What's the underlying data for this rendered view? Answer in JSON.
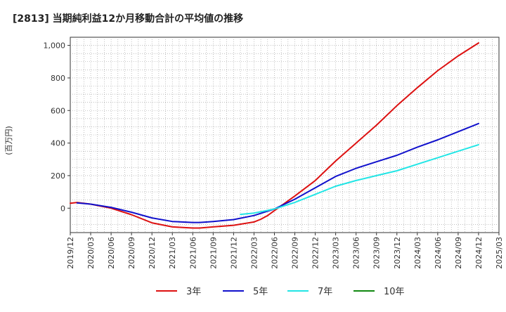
{
  "chart_data": {
    "type": "line",
    "title": "[2813]  当期純利益12か月移動合計の平均値の推移",
    "xlabel": "",
    "ylabel": "(百万円)",
    "ylim": [
      -150,
      1050
    ],
    "yticks": [
      0,
      200,
      400,
      600,
      800,
      1000
    ],
    "ytick_labels": [
      "0",
      "200",
      "400",
      "600",
      "800",
      "1,000"
    ],
    "x_ticks": [
      "2019/12",
      "2020/03",
      "2020/06",
      "2020/09",
      "2020/12",
      "2021/03",
      "2021/06",
      "2021/09",
      "2021/12",
      "2022/03",
      "2022/06",
      "2022/09",
      "2022/12",
      "2023/03",
      "2023/06",
      "2023/09",
      "2023/12",
      "2024/03",
      "2024/06",
      "2024/09",
      "2024/12",
      "2025/03"
    ],
    "grid": true,
    "legend_position": "bottom",
    "series": [
      {
        "name": "3年",
        "color": "#dd1111",
        "x": [
          "2019/12",
          "2020/01",
          "2020/03",
          "2020/06",
          "2020/09",
          "2020/12",
          "2021/03",
          "2021/06",
          "2021/07",
          "2021/09",
          "2021/12",
          "2022/03",
          "2022/04",
          "2022/05",
          "2022/06",
          "2022/09",
          "2022/12",
          "2023/03",
          "2023/06",
          "2023/09",
          "2023/12",
          "2024/03",
          "2024/06",
          "2024/09",
          "2024/12"
        ],
        "values": [
          30,
          35,
          25,
          0,
          -40,
          -90,
          -115,
          -122,
          -122,
          -115,
          -105,
          -85,
          -68,
          -45,
          -15,
          75,
          170,
          290,
          400,
          510,
          630,
          740,
          845,
          935,
          1015
        ]
      },
      {
        "name": "5年",
        "color": "#1111cc",
        "x": [
          "2020/01",
          "2020/03",
          "2020/06",
          "2020/09",
          "2020/12",
          "2021/03",
          "2021/06",
          "2021/07",
          "2021/09",
          "2021/12",
          "2022/03",
          "2022/06",
          "2022/09",
          "2022/12",
          "2023/03",
          "2023/06",
          "2023/09",
          "2023/12",
          "2024/03",
          "2024/06",
          "2024/09",
          "2024/12"
        ],
        "values": [
          32,
          25,
          5,
          -25,
          -60,
          -82,
          -88,
          -88,
          -82,
          -70,
          -45,
          -5,
          55,
          125,
          195,
          245,
          285,
          325,
          375,
          420,
          470,
          520
        ]
      },
      {
        "name": "7年",
        "color": "#22e5e5",
        "x": [
          "2022/01",
          "2022/03",
          "2022/06",
          "2022/09",
          "2022/12",
          "2023/03",
          "2023/06",
          "2023/09",
          "2023/12",
          "2024/03",
          "2024/06",
          "2024/09",
          "2024/12"
        ],
        "values": [
          -38,
          -30,
          -5,
          35,
          85,
          135,
          170,
          200,
          230,
          270,
          310,
          350,
          390
        ]
      },
      {
        "name": "10年",
        "color": "#118811",
        "x": [],
        "values": []
      }
    ]
  }
}
